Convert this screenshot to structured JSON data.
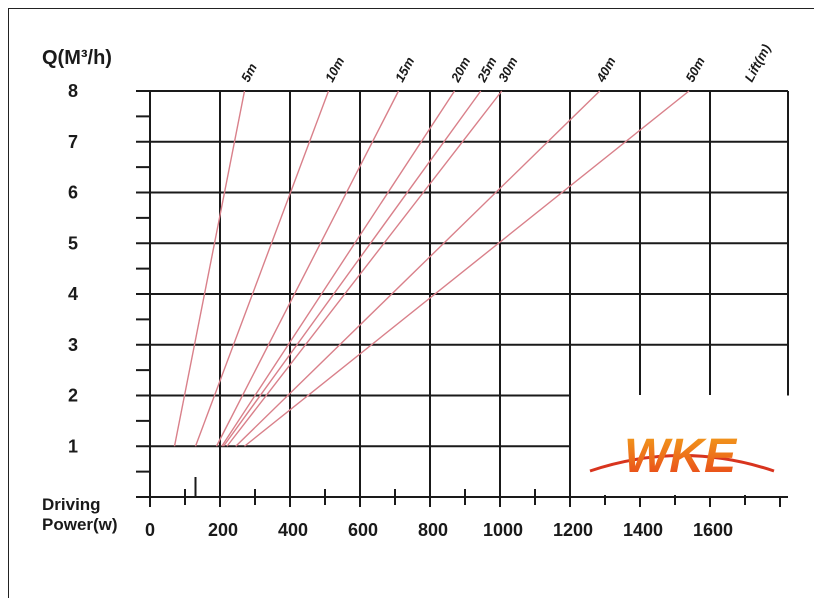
{
  "chart_data": {
    "type": "line",
    "y_title": "Q(M³/h)",
    "x_title_line1": "Driving",
    "x_title_line2": "Power(w)",
    "xlim": [
      0,
      1800
    ],
    "ylim": [
      0,
      8
    ],
    "x_ticks": [
      0,
      200,
      400,
      600,
      800,
      1000,
      1200,
      1400,
      1600
    ],
    "y_ticks": [
      1,
      2,
      3,
      4,
      5,
      6,
      7,
      8
    ],
    "lift_axis_label": "Lift(m)",
    "grid": true,
    "series": [
      {
        "name": "5m",
        "points": [
          [
            70,
            1
          ],
          [
            270,
            8
          ]
        ]
      },
      {
        "name": "10m",
        "points": [
          [
            130,
            1
          ],
          [
            510,
            8
          ]
        ]
      },
      {
        "name": "15m",
        "points": [
          [
            190,
            1
          ],
          [
            710,
            8
          ]
        ]
      },
      {
        "name": "20m",
        "points": [
          [
            205,
            1
          ],
          [
            870,
            8
          ]
        ]
      },
      {
        "name": "25m",
        "points": [
          [
            210,
            1
          ],
          [
            945,
            8
          ]
        ]
      },
      {
        "name": "30m",
        "points": [
          [
            220,
            1
          ],
          [
            1005,
            8
          ]
        ]
      },
      {
        "name": "40m",
        "points": [
          [
            245,
            1
          ],
          [
            1285,
            8
          ]
        ]
      },
      {
        "name": "50m",
        "points": [
          [
            270,
            1
          ],
          [
            1540,
            8
          ]
        ]
      }
    ],
    "colors": {
      "grid": "#1a1a1a",
      "curve": "#d9808a"
    }
  },
  "logo": {
    "text": "WKE",
    "colors": {
      "top": "#f2a21b",
      "bottom": "#e8401a",
      "arc": "#d8341e"
    }
  }
}
